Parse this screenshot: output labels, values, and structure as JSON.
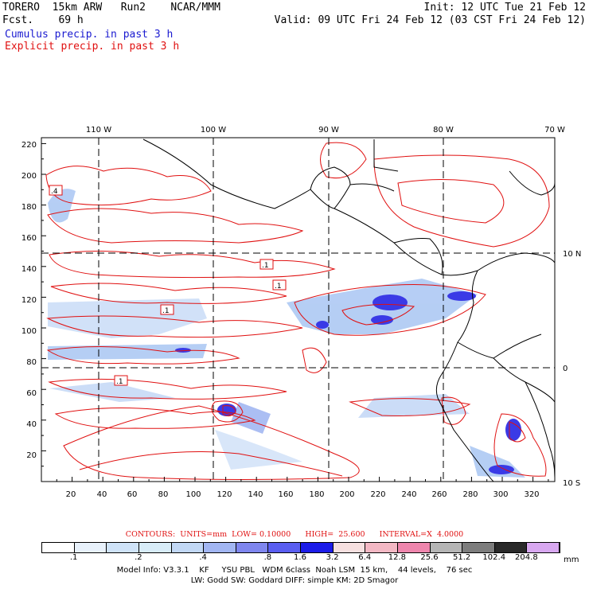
{
  "header": {
    "left_line1": "TORERO  15km ARW   Run2    NCAR/MMM",
    "left_line2": "Fcst.    69 h",
    "right_line1": "Init: 12 UTC Tue 21 Feb 12",
    "right_line2": "Valid: 09 UTC Fri 24 Feb 12 (03 CST Fri 24 Feb 12)",
    "legend_blue": "Cumulus precip. in past 3 h",
    "legend_red": "Explicit precip. in past 3 h"
  },
  "map": {
    "top_lon_labels": [
      "110 W",
      "100 W",
      "90 W",
      "80 W",
      "70 W"
    ],
    "left_y_ticks": [
      "220",
      "200",
      "180",
      "160",
      "140",
      "120",
      "100",
      "80",
      "60",
      "40",
      "20"
    ],
    "bottom_x_ticks": [
      "20",
      "40",
      "60",
      "80",
      "100",
      "120",
      "140",
      "160",
      "180",
      "200",
      "220",
      "240",
      "260",
      "280",
      "300",
      "320"
    ],
    "right_lat_labels": [
      "10 N",
      "0",
      "10 S"
    ],
    "contour_labels": [
      ".4",
      ".1",
      ".1",
      ".1",
      ".1"
    ],
    "colors": {
      "frame": "#000000",
      "contour": "#e01010",
      "coast": "#000000"
    }
  },
  "contours_info": {
    "line": "CONTOURS:  UNITS=mm  LOW= 0.10000      HIGH=  25.600      INTERVAL=X  4.0000"
  },
  "colorbar": {
    "colors": [
      "#ffffff",
      "#e8f1fb",
      "#cfe3f8",
      "#d8ecf8",
      "#c2d8f5",
      "#a2b6f2",
      "#7f86ee",
      "#5a5ef0",
      "#1c1ce8",
      "#f6e0e0",
      "#f3b8c4",
      "#ee86ad",
      "#b5b5b5",
      "#7d7d7d",
      "#2a2a2a",
      "#d8a8f0"
    ],
    "labels": [
      ".1",
      ".2",
      ".4",
      ".8",
      "1.6",
      "3.2",
      "6.4",
      "12.8",
      "25.6",
      "51.2",
      "102.4",
      "204.8"
    ],
    "unit": "mm"
  },
  "footer": {
    "line1": "Model Info: V3.3.1    KF     YSU PBL   WDM 6class  Noah LSM  15 km,    44 levels,    76 sec",
    "line2": "LW: Godd SW: Goddard DIFF: simple KM: 2D Smagor"
  }
}
